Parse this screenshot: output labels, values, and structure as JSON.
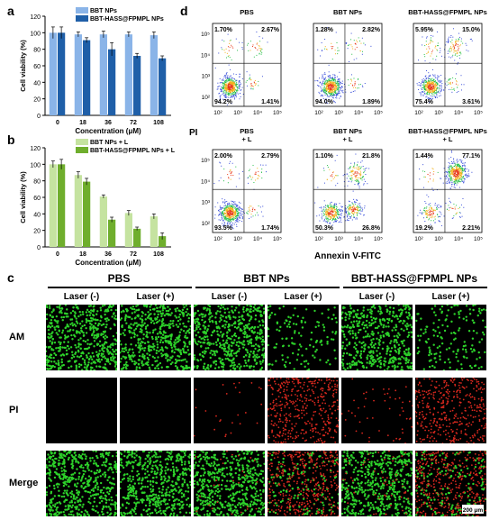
{
  "panels": {
    "a": {
      "label": "a"
    },
    "b": {
      "label": "b"
    },
    "c": {
      "label": "c"
    },
    "d": {
      "label": "d"
    }
  },
  "chart_data": [
    {
      "id": "a",
      "type": "bar",
      "ylabel": "Cell viability (%)",
      "xlabel": "Concentration (μM)",
      "categories": [
        "0",
        "18",
        "36",
        "72",
        "108"
      ],
      "ylim": [
        0,
        120
      ],
      "yticks": [
        "0",
        "20",
        "40",
        "60",
        "80",
        "100",
        "120"
      ],
      "legend_position": "top-right",
      "series": [
        {
          "name": "BBT NPs",
          "color": "#8ab4e8",
          "values": [
            100,
            98,
            98,
            98,
            97
          ],
          "errors": [
            7,
            3,
            4,
            3,
            4
          ]
        },
        {
          "name": "BBT-HASS@FPMPL NPs",
          "color": "#1f5fa8",
          "values": [
            100,
            91,
            80,
            72,
            69
          ],
          "errors": [
            7,
            3,
            8,
            3,
            3
          ]
        }
      ]
    },
    {
      "id": "b",
      "type": "bar",
      "ylabel": "Cell viability (%)",
      "xlabel": "Concentration (μM)",
      "categories": [
        "0",
        "18",
        "36",
        "72",
        "108"
      ],
      "ylim": [
        0,
        120
      ],
      "yticks": [
        "0",
        "20",
        "40",
        "60",
        "80",
        "100",
        "120"
      ],
      "legend_position": "top-right",
      "series": [
        {
          "name": "BBT NPs + L",
          "color": "#c5e3a0",
          "values": [
            100,
            87,
            61,
            41,
            37
          ],
          "errors": [
            4,
            4,
            2,
            3,
            3
          ]
        },
        {
          "name": "BBT-HASS@FPMPL NPs + L",
          "color": "#6fae2d",
          "values": [
            100,
            79,
            33,
            22,
            13
          ],
          "errors": [
            6,
            4,
            3,
            2,
            4
          ]
        }
      ]
    }
  ],
  "flow": {
    "xaxis_label": "Annexin V-FITC",
    "yaxis_label": "PI",
    "ticks": [
      "10²",
      "10³",
      "10⁴",
      "10⁵"
    ],
    "plots": [
      {
        "title": "PBS",
        "ul": "1.70%",
        "ur": "2.67%",
        "ll": "94.2%",
        "lr": "1.41%"
      },
      {
        "title": "BBT NPs",
        "ul": "1.28%",
        "ur": "2.82%",
        "ll": "94.0%",
        "lr": "1.89%"
      },
      {
        "title": "BBT-HASS@FPMPL NPs",
        "ul": "5.95%",
        "ur": "15.0%",
        "ll": "75.4%",
        "lr": "3.61%"
      },
      {
        "title": "PBS\n+ L",
        "ul": "2.00%",
        "ur": "2.79%",
        "ll": "93.5%",
        "lr": "1.74%"
      },
      {
        "title": "BBT NPs\n+ L",
        "ul": "1.10%",
        "ur": "21.8%",
        "ll": "50.3%",
        "lr": "26.8%"
      },
      {
        "title": "BBT-HASS@FPMPL NPs\n+ L",
        "ul": "1.44%",
        "ur": "77.1%",
        "ll": "19.2%",
        "lr": "2.21%"
      }
    ]
  },
  "micro": {
    "groups": [
      "PBS",
      "BBT NPs",
      "BBT-HASS@FPMPL NPs"
    ],
    "laser_labels": [
      "Laser (-)",
      "Laser (+)",
      "Laser (-)",
      "Laser (+)",
      "Laser (-)",
      "Laser (+)"
    ],
    "rows": [
      "AM",
      "PI",
      "Merge"
    ],
    "scale_bar": "200 μm",
    "green_density": [
      1.0,
      1.0,
      1.0,
      0.25,
      0.9,
      0.3
    ],
    "red_density": [
      0.0,
      0.0,
      0.05,
      0.8,
      0.1,
      0.75
    ]
  }
}
